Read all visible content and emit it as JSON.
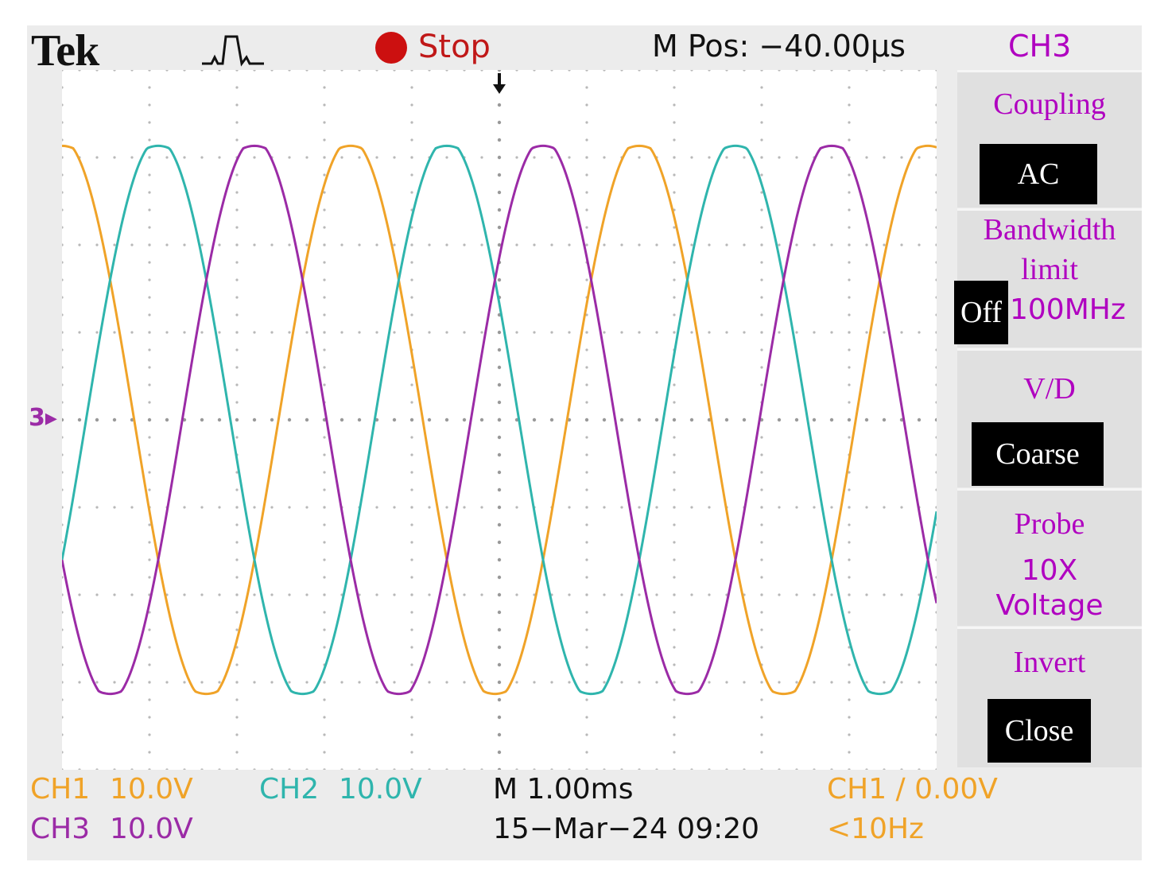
{
  "header": {
    "brand": "Tek",
    "run_state": "Stop",
    "m_pos": "M Pos: −40.00µs",
    "menu_channel": "CH3"
  },
  "trigger_marker": "3",
  "icons": {
    "acquisition": "trigger-pulse-icon",
    "run": "stop-dot-icon",
    "trigger_pos": "trigger-arrow-icon"
  },
  "side_menu": {
    "coupling": {
      "label": "Coupling",
      "value": "AC"
    },
    "bandwidth": {
      "label_1": "Bandwidth",
      "label_2": "limit",
      "value": "Off",
      "alt": "100MHz"
    },
    "volts_div": {
      "label": "V/D",
      "value": "Coarse"
    },
    "probe": {
      "label": "Probe",
      "value_1": "10X",
      "value_2": "Voltage"
    },
    "invert": {
      "label": "Invert",
      "value": "Close"
    }
  },
  "footer": {
    "ch1_name": "CH1",
    "ch1_scale": "10.0V",
    "ch2_name": "CH2",
    "ch2_scale": "10.0V",
    "ch3_name": "CH3",
    "ch3_scale": "10.0V",
    "timebase": "M 1.00ms",
    "datetime": "15−Mar−24 09:20",
    "trigger": "CH1 ∕ 0.00V",
    "freq": "<10Hz"
  },
  "colors": {
    "ch1": "#f0a328",
    "ch2": "#2fb5ad",
    "ch3": "#9b2ba6",
    "menu": "#b000c0"
  },
  "chart_data": {
    "type": "line",
    "x_divisions": 10,
    "y_divisions": 8,
    "series": [
      {
        "name": "CH1",
        "amplitude_div": 3.2,
        "phase_deg": 90
      },
      {
        "name": "CH2",
        "amplitude_div": 3.2,
        "phase_deg": -30
      },
      {
        "name": "CH3",
        "amplitude_div": 3.2,
        "phase_deg": 210
      }
    ],
    "period_div": 3.3
  }
}
